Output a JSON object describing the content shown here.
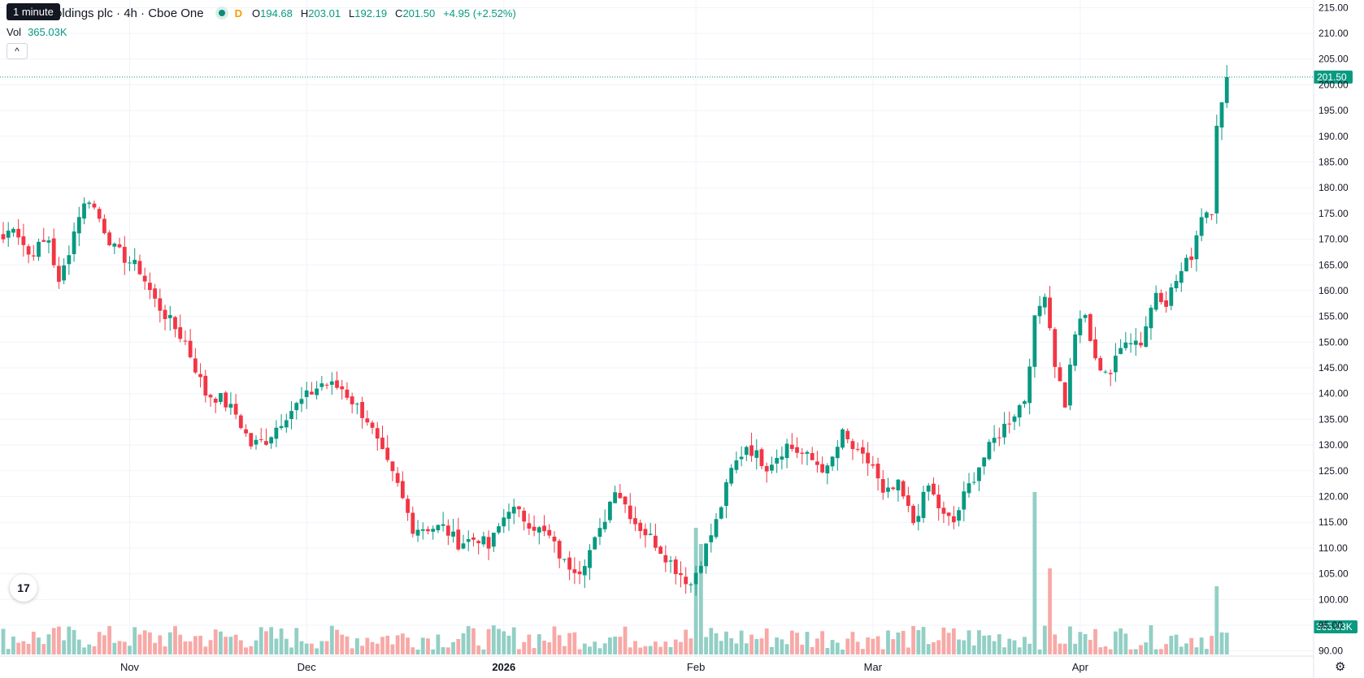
{
  "header": {
    "tooltip": "1 minute",
    "symbol_title": "oldings plc · 4h · Cboe One",
    "market_status_letter": "D",
    "ohlc": [
      {
        "key": "O",
        "value": "194.68"
      },
      {
        "key": "H",
        "value": "203.01"
      },
      {
        "key": "L",
        "value": "192.19"
      },
      {
        "key": "C",
        "value": "201.50"
      },
      {
        "key": "",
        "value": "+4.95 (+2.52%)"
      }
    ],
    "volume_label": "Vol",
    "volume_value": "365.03K"
  },
  "price_axis": {
    "ticks": [
      "215.00",
      "210.00",
      "205.00",
      "200.00",
      "195.00",
      "190.00",
      "185.00",
      "180.00",
      "175.00",
      "170.00",
      "165.00",
      "160.00",
      "155.00",
      "150.00",
      "145.00",
      "140.00",
      "135.00",
      "130.00",
      "125.00",
      "120.00",
      "115.00",
      "110.00",
      "105.00",
      "100.00",
      "95.00",
      "90.00"
    ],
    "last_price_label": "201.50",
    "last_volume_label": "365.03K"
  },
  "time_axis": {
    "labels": [
      {
        "text": "Nov",
        "index": 25,
        "bold": false
      },
      {
        "text": "Dec",
        "index": 60,
        "bold": false
      },
      {
        "text": "2026",
        "index": 99,
        "bold": true
      },
      {
        "text": "Feb",
        "index": 137,
        "bold": false
      },
      {
        "text": "Mar",
        "index": 172,
        "bold": false
      },
      {
        "text": "Apr",
        "index": 213,
        "bold": false
      }
    ]
  },
  "logo_text": "17",
  "settings_icon": "gear-icon",
  "colors": {
    "up": "#089981",
    "down": "#f23645",
    "vol_up": "#92cfc5",
    "vol_down": "#f7a9a7",
    "grid": "#f0f3fa"
  },
  "chart_data": {
    "type": "candlestick",
    "interval": "4h",
    "y_range": [
      89,
      216
    ],
    "last_close": 201.5,
    "anchors": [
      [
        0,
        170
      ],
      [
        2,
        173
      ],
      [
        5,
        167
      ],
      [
        9,
        170
      ],
      [
        11,
        161
      ],
      [
        15,
        175
      ],
      [
        17,
        178
      ],
      [
        20,
        172
      ],
      [
        22,
        168
      ],
      [
        27,
        164
      ],
      [
        30,
        158
      ],
      [
        33,
        154
      ],
      [
        36,
        150
      ],
      [
        40,
        140
      ],
      [
        43,
        139
      ],
      [
        46,
        136
      ],
      [
        49,
        130
      ],
      [
        52,
        131
      ],
      [
        56,
        136
      ],
      [
        63,
        142
      ],
      [
        67,
        141
      ],
      [
        72,
        135
      ],
      [
        75,
        128
      ],
      [
        78,
        122
      ],
      [
        81,
        114
      ],
      [
        87,
        114
      ],
      [
        90,
        111
      ],
      [
        94,
        112
      ],
      [
        96,
        110
      ],
      [
        100,
        118
      ],
      [
        104,
        115
      ],
      [
        108,
        112
      ],
      [
        111,
        107
      ],
      [
        114,
        106
      ],
      [
        118,
        113
      ],
      [
        121,
        122
      ],
      [
        125,
        115
      ],
      [
        129,
        111
      ],
      [
        133,
        106
      ],
      [
        136,
        103
      ],
      [
        141,
        115
      ],
      [
        144,
        125
      ],
      [
        147,
        130
      ],
      [
        151,
        126
      ],
      [
        155,
        130
      ],
      [
        160,
        127
      ],
      [
        163,
        125
      ],
      [
        166,
        132
      ],
      [
        169,
        128
      ],
      [
        172,
        126
      ],
      [
        174,
        120
      ],
      [
        177,
        122
      ],
      [
        180,
        115
      ],
      [
        183,
        122
      ],
      [
        186,
        116
      ],
      [
        188,
        115
      ],
      [
        190,
        120
      ],
      [
        193,
        126
      ],
      [
        196,
        131
      ],
      [
        199,
        135
      ],
      [
        202,
        139
      ],
      [
        204,
        154
      ],
      [
        206,
        160
      ],
      [
        208,
        146
      ],
      [
        210,
        138
      ],
      [
        212,
        152
      ],
      [
        214,
        155
      ],
      [
        216,
        146
      ],
      [
        219,
        144
      ],
      [
        222,
        151
      ],
      [
        225,
        150
      ],
      [
        228,
        160
      ],
      [
        230,
        158
      ],
      [
        232,
        162
      ],
      [
        235,
        167
      ],
      [
        237,
        175
      ],
      [
        239,
        176
      ],
      [
        240,
        193
      ],
      [
        241,
        196
      ],
      [
        242,
        201.5
      ]
    ],
    "volume_spikes": [
      [
        204,
        1.0
      ],
      [
        207,
        0.53
      ],
      [
        240,
        0.42
      ],
      [
        137,
        0.78
      ],
      [
        138,
        0.68
      ]
    ]
  }
}
